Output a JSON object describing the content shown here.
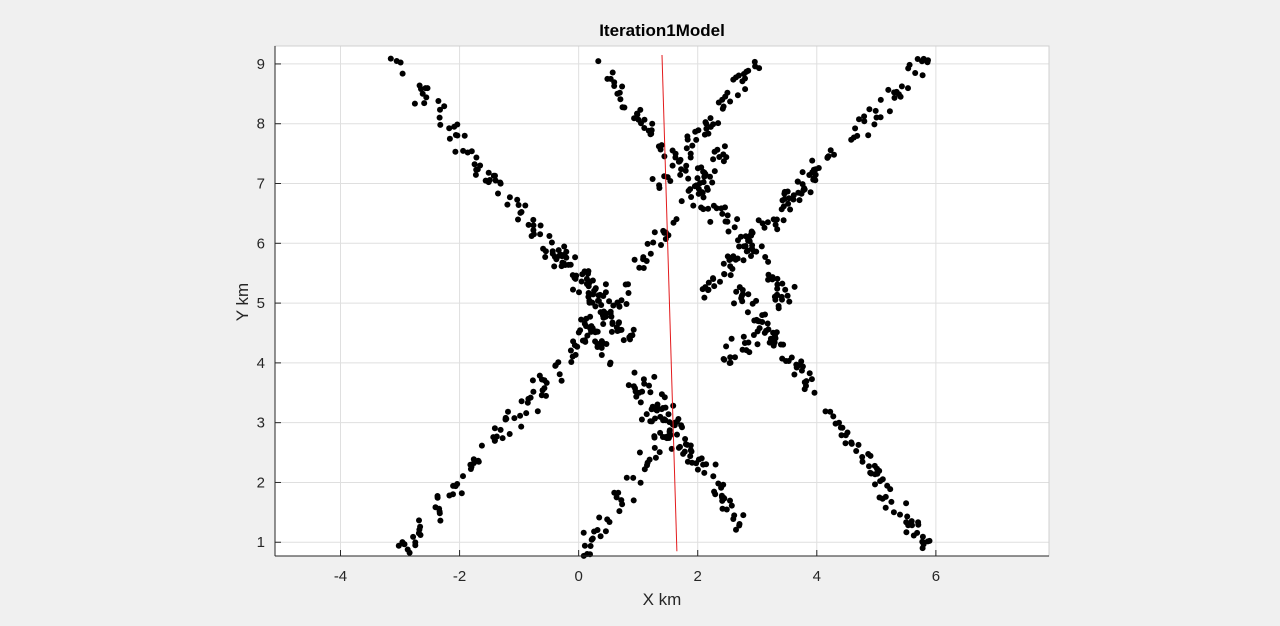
{
  "chart_data": {
    "type": "scatter",
    "title": "Iteration1Model",
    "xlabel": "X km",
    "ylabel": "Y km",
    "xlim": [
      -5.1,
      7.9
    ],
    "ylim": [
      0.77,
      9.3
    ],
    "xticks": [
      -4,
      -2,
      0,
      2,
      4,
      6
    ],
    "yticks": [
      1,
      2,
      3,
      4,
      5,
      6,
      7,
      8,
      9
    ],
    "xtick_labels": [
      "-4",
      "-2",
      "0",
      "2",
      "4",
      "6"
    ],
    "ytick_labels": [
      "1",
      "2",
      "3",
      "4",
      "5",
      "6",
      "7",
      "8",
      "9"
    ],
    "grid": true,
    "colors": {
      "points": "#000000",
      "line": "#e31a1c",
      "grid": "#dfdfdf",
      "plot_bg": "#ffffff",
      "axes": "#262626"
    },
    "line_series": {
      "x": [
        1.4,
        1.65
      ],
      "y": [
        9.15,
        0.85
      ]
    },
    "point_clusters": [
      {
        "x0": -3.1,
        "y0": 9.05,
        "x1": 0.9,
        "y1": 4.3,
        "n": 115,
        "spread": 0.18
      },
      {
        "x0": 0.0,
        "y0": 4.7,
        "x1": 2.0,
        "y1": 2.3,
        "n": 45,
        "spread": 0.18
      },
      {
        "x0": 2.6,
        "y0": 5.3,
        "x1": 5.9,
        "y1": 0.9,
        "n": 110,
        "spread": 0.18
      },
      {
        "x0": -2.95,
        "y0": 0.9,
        "x1": 0.4,
        "y1": 4.8,
        "n": 95,
        "spread": 0.18
      },
      {
        "x0": 0.4,
        "y0": 4.75,
        "x1": 2.5,
        "y1": 7.6,
        "n": 50,
        "spread": 0.18
      },
      {
        "x0": 2.0,
        "y0": 5.1,
        "x1": 5.9,
        "y1": 9.15,
        "n": 115,
        "spread": 0.18
      },
      {
        "x0": 0.2,
        "y0": 9.05,
        "x1": 1.45,
        "y1": 7.6,
        "n": 28,
        "spread": 0.18
      },
      {
        "x0": 1.45,
        "y0": 7.6,
        "x1": 3.35,
        "y1": 5.3,
        "n": 55,
        "spread": 0.18
      },
      {
        "x0": 2.95,
        "y0": 9.05,
        "x1": 1.35,
        "y1": 6.9,
        "n": 50,
        "spread": 0.18
      },
      {
        "x0": 0.1,
        "y0": 0.85,
        "x1": 1.55,
        "y1": 2.95,
        "n": 45,
        "spread": 0.18
      },
      {
        "x0": 1.1,
        "y0": 3.7,
        "x1": 2.8,
        "y1": 1.2,
        "n": 60,
        "spread": 0.18
      },
      {
        "x0": -0.5,
        "y0": 5.95,
        "x1": 0.6,
        "y1": 5.0,
        "n": 30,
        "spread": 0.2
      },
      {
        "x0": 2.5,
        "y0": 4.0,
        "x1": 3.6,
        "y1": 5.3,
        "n": 30,
        "spread": 0.2
      }
    ]
  }
}
